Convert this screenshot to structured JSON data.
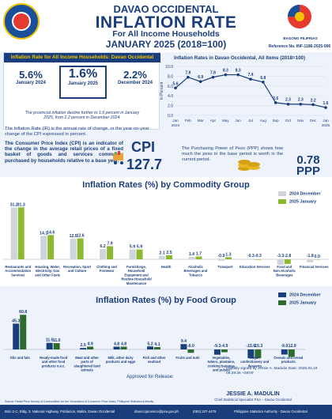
{
  "header": {
    "region": "DAVAO OCCIDENTAL",
    "title": "INFLATION RATE",
    "subtitle": "For All Income Households",
    "period": "JANUARY 2025 (2018=100)",
    "reference_number": "Reference No. INF-1186-2025-006",
    "bp_label": "BAGONG PILIPINAS"
  },
  "inflation_box": {
    "title": "Inflation Rate for All Income Households: Davao Occidental",
    "cards": [
      {
        "value": "5.6%",
        "label": "January 2024"
      },
      {
        "value": "1.6%",
        "label": "January 2025"
      },
      {
        "value": "2.2%",
        "label": "December 2024"
      }
    ],
    "note": "The provincial inflation decline further to 1.6 percent in January 2025, from 2.2 percent in December 2024."
  },
  "definition": "The Inflation Rate (IR) is the annual rate of change, or the year-on-year change of the CPI expressed in percent.",
  "cpi": {
    "description": "The Consumer Price Index (CPI) is an indicator of the change in the average retail prices of a fixed basket of goods and services commonly purchased by households relative to a base year.",
    "label": "CPI",
    "value": "127.7"
  },
  "ppp": {
    "description": "The Purchasing Power of Peso (PPP) shows how much the peso in the base period is worth in the current period.",
    "value": "0.78",
    "label": "PPP"
  },
  "line_title": "Inflation Rates in Davao Occidental, All Items (2018=100)",
  "commodity_title": "Inflation Rates (%) by Commodity Group",
  "food_title": "Inflation Rates (%) by Food Group",
  "legend": {
    "dec": "2024 December",
    "jan": "2025 January"
  },
  "colors": {
    "navy": "#1a3d7c",
    "green": "#8db832",
    "grey": "#cfd3da",
    "darkgreen": "#2d6b2e",
    "yellow": "#f2c400"
  },
  "approval": {
    "approved_label": "Approved for Release:",
    "digital": "Digitally signed by Jessie A. Madulin Date: 2025.02.19 08:29:26 +08'00'",
    "name": "JESSIE A. MADULIN",
    "role": "Chief Statistical Specialist PSA – Davao Occidental"
  },
  "source": "Source: Retail Price Survey of Commodities for the Generation of Consumer Price Index, Philippine Statistics Authority",
  "footer": {
    "address": "Bolo 2.C, Bldg. 3, National Highway, Poblacion, Malita, Davao Occidental",
    "email": "daovcciprovince@psa.gov.ph",
    "phone": "(082) 227-4475",
    "fb": "Philippine Statistics Authority - Davao Occidental"
  },
  "chart_data": [
    {
      "type": "line",
      "title": "Inflation Rates in Davao Occidental, All Items (2018=100)",
      "ylabel": "In Percent",
      "x": [
        "Jan 2024",
        "Feb",
        "Mar",
        "Apr",
        "May",
        "Jun",
        "Jul",
        "Aug",
        "Sep",
        "Oct",
        "Nov",
        "Dec",
        "Jan 2025"
      ],
      "values": [
        5.6,
        7.8,
        6.9,
        7.8,
        8.3,
        8.3,
        7.4,
        6.8,
        2.6,
        2.3,
        2.3,
        2.2,
        1.6
      ],
      "value_labels": [
        "5.6",
        "7.8",
        "6.9",
        "7.8",
        "8.3",
        "8.3",
        "7.4",
        "6.8",
        "2.6",
        "2.3",
        "2.3",
        "2.2",
        "1.6"
      ],
      "ylim": [
        0,
        10
      ],
      "yticks": [
        "0.0",
        "2.0",
        "4.0",
        "6.0",
        "8.0",
        "10.0"
      ],
      "xticks": [
        "Jan 2024",
        "Feb",
        "Mar",
        "Apr",
        "May",
        "Jun",
        "Jul",
        "Aug",
        "Sep",
        "Oct",
        "Nov",
        "Dec",
        "Jan 2025"
      ]
    },
    {
      "type": "bar",
      "title": "Inflation Rates (%) by Commodity Group",
      "categories": [
        "Restaurants and Accommodation Services",
        "Housing, Water, Electricity, Gas and Other Fuels",
        "Recreation, Sport and Culture",
        "Clothing and Footwear",
        "Furnishings, Household Equipment and Routine Household Maintenance",
        "Health",
        "Alcoholic Beverages and Tobacco",
        "Transport",
        "Education Services",
        "Food and Non-Alcoholic Beverages",
        "Financial Services"
      ],
      "series": [
        {
          "name": "2024 December",
          "values": [
            31.2,
            14.1,
            12.5,
            6.2,
            5.9,
            2.1,
            1.4,
            -0.9,
            -0.3,
            -3.3,
            -1.8
          ]
        },
        {
          "name": "2025 January",
          "values": [
            31.3,
            14.6,
            12.6,
            7.9,
            5.9,
            2.5,
            1.7,
            1.3,
            -0.3,
            -2.8,
            0.0
          ]
        }
      ],
      "labels": [
        [
          "31.2",
          "31.3"
        ],
        [
          "14.1",
          "14.6"
        ],
        [
          "12.5",
          "12.6"
        ],
        [
          "6.2",
          "7.9"
        ],
        [
          "5.9",
          "5.9"
        ],
        [
          "2.1",
          "2.5"
        ],
        [
          "1.4",
          "1.7"
        ],
        [
          "-0.9",
          "1.3"
        ],
        [
          "-0.3",
          "-0.3"
        ],
        [
          "-3.3",
          "-2.8"
        ],
        [
          "-1.8",
          "0.0"
        ]
      ]
    },
    {
      "type": "bar",
      "title": "Inflation Rates (%) by Food Group",
      "categories": [
        "Oils and fats",
        "Ready-made food and other food products n.e.c.",
        "Meat and other parts of slaughtered land animals",
        "Milk, other dairy products and eggs",
        "Fish and other seafood",
        "Fruits and nuts",
        "Vegetables, tubers, plantains, cooking bananas and pulses",
        "Sugar, confectionery and desserts",
        "Cereals and cereal products"
      ],
      "series": [
        {
          "name": "2024 December",
          "values": [
            45.3,
            11.5,
            2.5,
            4.8,
            5.2,
            9.4,
            -9.3,
            -15.5,
            -9.0
          ]
        },
        {
          "name": "2025 January",
          "values": [
            60.8,
            11.0,
            4.9,
            4.8,
            4.1,
            -6.0,
            -4.9,
            -15.3,
            -12.9
          ]
        }
      ],
      "labels": [
        [
          "45.3",
          "60.8"
        ],
        [
          "11.5",
          "11.0"
        ],
        [
          "2.5",
          "4.9"
        ],
        [
          "4.8",
          "4.8"
        ],
        [
          "5.2",
          "4.1"
        ],
        [
          "9.4",
          "-6.0"
        ],
        [
          "-9.3",
          "-4.9"
        ],
        [
          "-15.5",
          "-15.3"
        ],
        [
          "-9.0",
          "-12.9"
        ]
      ]
    }
  ]
}
